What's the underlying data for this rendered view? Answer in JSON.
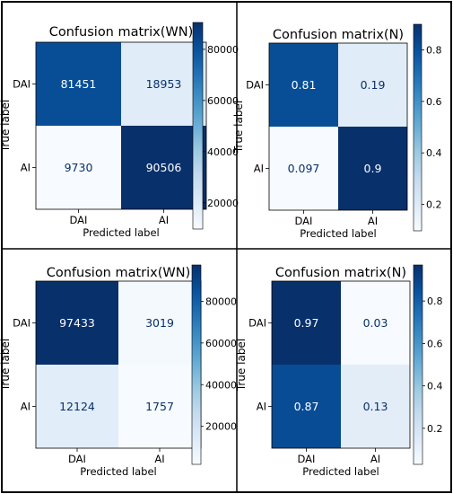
{
  "chart_data": [
    {
      "type": "heatmap",
      "title": "Confusion matrix(WN)",
      "xlabel": "Predicted label",
      "ylabel": "True label",
      "x_categories": [
        "DAI",
        "AI"
      ],
      "y_categories": [
        "DAI",
        "AI"
      ],
      "values": [
        [
          81451,
          18953
        ],
        [
          9730,
          90506
        ]
      ],
      "value_labels": [
        [
          "81451",
          "18953"
        ],
        [
          "9730",
          "90506"
        ]
      ],
      "colormap": "Blues",
      "colorbar": {
        "min": 9730,
        "max": 90506,
        "ticks": [
          20000,
          40000,
          60000,
          80000
        ],
        "tick_labels": [
          "20000",
          "40000",
          "60000",
          "80000"
        ]
      }
    },
    {
      "type": "heatmap",
      "title": "Confusion matrix(N)",
      "xlabel": "Predicted label",
      "ylabel": "True label",
      "x_categories": [
        "DAI",
        "AI"
      ],
      "y_categories": [
        "DAI",
        "AI"
      ],
      "values": [
        [
          0.81,
          0.19
        ],
        [
          0.097,
          0.9
        ]
      ],
      "value_labels": [
        [
          "0.81",
          "0.19"
        ],
        [
          "0.097",
          "0.9"
        ]
      ],
      "colormap": "Blues",
      "colorbar": {
        "min": 0.097,
        "max": 0.9,
        "ticks": [
          0.2,
          0.4,
          0.6,
          0.8
        ],
        "tick_labels": [
          "0.2",
          "0.4",
          "0.6",
          "0.8"
        ]
      }
    },
    {
      "type": "heatmap",
      "title": "Confusion matrix(WN)",
      "xlabel": "Predicted label",
      "ylabel": "True label",
      "x_categories": [
        "DAI",
        "AI"
      ],
      "y_categories": [
        "DAI",
        "AI"
      ],
      "values": [
        [
          97433,
          3019
        ],
        [
          12124,
          1757
        ]
      ],
      "value_labels": [
        [
          "97433",
          "3019"
        ],
        [
          "12124",
          "1757"
        ]
      ],
      "colormap": "Blues",
      "colorbar": {
        "min": 1757,
        "max": 97433,
        "ticks": [
          20000,
          40000,
          60000,
          80000
        ],
        "tick_labels": [
          "20000",
          "40000",
          "60000",
          "80000"
        ]
      }
    },
    {
      "type": "heatmap",
      "title": "Confusion matrix(N)",
      "xlabel": "Predicted label",
      "ylabel": "True label",
      "x_categories": [
        "DAI",
        "AI"
      ],
      "y_categories": [
        "DAI",
        "AI"
      ],
      "values": [
        [
          0.97,
          0.03
        ],
        [
          0.87,
          0.13
        ]
      ],
      "value_labels": [
        [
          "0.97",
          "0.03"
        ],
        [
          "0.87",
          "0.13"
        ]
      ],
      "colormap": "Blues",
      "colorbar": {
        "min": 0.03,
        "max": 0.97,
        "ticks": [
          0.2,
          0.4,
          0.6,
          0.8
        ],
        "tick_labels": [
          "0.2",
          "0.4",
          "0.6",
          "0.8"
        ]
      }
    }
  ]
}
